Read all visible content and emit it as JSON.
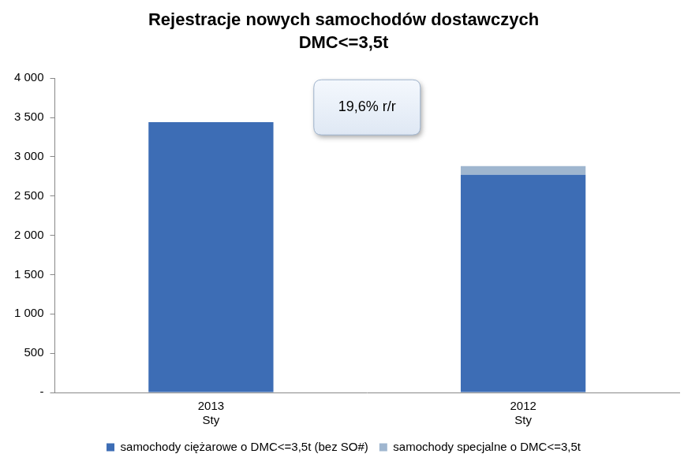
{
  "chart_data": {
    "type": "bar",
    "title": "Rejestracje nowych samochodów dostawczych\nDMC<=3,5t",
    "annotation": "19,6% r/r",
    "categories": [
      "2013\nSty",
      "2012\nSty"
    ],
    "series": [
      {
        "name": "samochody ciężarowe o DMC<=3,5t (bez SO#)",
        "color": "#3d6db5",
        "values": [
          3440,
          2770
        ]
      },
      {
        "name": "samochody specjalne o DMC<=3,5t",
        "color": "#9fb6cf",
        "values": [
          0,
          110
        ]
      }
    ],
    "stacked": true,
    "ylim": [
      0,
      4000
    ],
    "yticks": [
      {
        "value": 0,
        "label": "-"
      },
      500,
      {
        "value": 1000,
        "label": "1 000"
      },
      {
        "value": 1500,
        "label": "1 500"
      },
      {
        "value": 2000,
        "label": "2 000"
      },
      {
        "value": 2500,
        "label": "2 500"
      },
      {
        "value": 3000,
        "label": "3 000"
      },
      {
        "value": 3500,
        "label": "3 500"
      },
      {
        "value": 4000,
        "label": "4 000"
      }
    ],
    "grid": false,
    "legend": "bottom"
  }
}
